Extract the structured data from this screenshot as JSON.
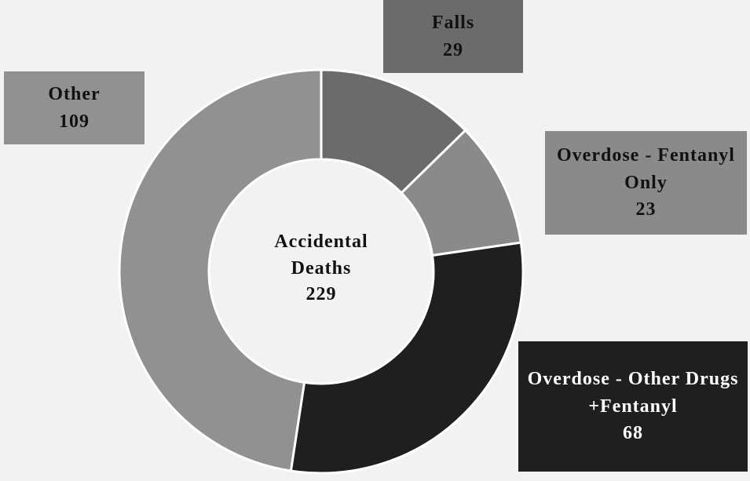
{
  "chart_data": {
    "type": "donut",
    "center_label": "Accidental Deaths",
    "center_value": 229,
    "categories": [
      "Falls",
      "Overdose - Fentanyl Only",
      "Overdose - Other Drugs +Fentanyl",
      "Other"
    ],
    "values": [
      29,
      23,
      68,
      109
    ],
    "colors": [
      "#6b6b6b",
      "#8a8a8a",
      "#1f1f1f",
      "#919191"
    ]
  }
}
